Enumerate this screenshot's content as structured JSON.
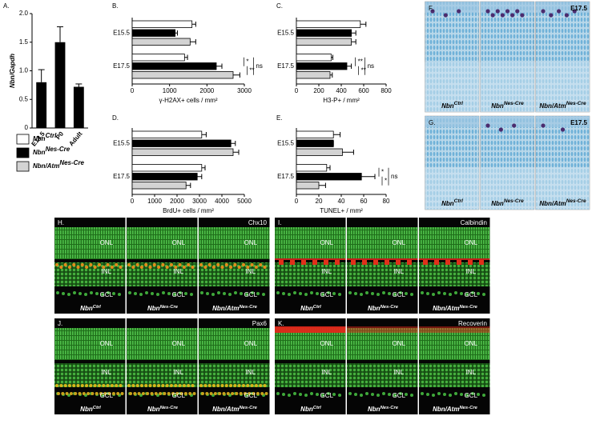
{
  "chart_data": [
    {
      "type": "bar",
      "label": "A.",
      "ylabel": "Nbn/Gapdh",
      "categories": [
        "E14.5",
        "P0",
        "Adult"
      ],
      "values": [
        0.8,
        1.5,
        0.72
      ],
      "errors": [
        0.22,
        0.27,
        0.05
      ],
      "color": "#000000",
      "ylim": [
        0,
        2
      ],
      "yticks": [
        0,
        0.5,
        {
          "value": 1,
          "label": "1.0"
        },
        1.5,
        {
          "value": 2,
          "label": "2.0"
        }
      ]
    },
    {
      "type": "hbar",
      "label": "B.",
      "xlabel": "γ-H2AX+ cells / mm²",
      "categories": [
        "E15.5",
        "E17.5"
      ],
      "series": [
        {
          "color": "#ffffff",
          "values": [
            1600,
            1400
          ],
          "errors": [
            100,
            80
          ]
        },
        {
          "color": "#000000",
          "values": [
            1150,
            2250
          ],
          "errors": [
            60,
            150
          ]
        },
        {
          "color": "#d3d3d3",
          "values": [
            1550,
            2700
          ],
          "errors": [
            150,
            180
          ]
        }
      ],
      "xlim": [
        0,
        3000
      ],
      "xticks": [
        0,
        1000,
        2000,
        3000
      ],
      "annotations": [
        "*",
        "**",
        "ns"
      ]
    },
    {
      "type": "hbar",
      "label": "C.",
      "xlabel": "H3-P+ / mm²",
      "categories": [
        "E15.5",
        "E17.5"
      ],
      "series": [
        {
          "color": "#ffffff",
          "values": [
            570,
            310
          ],
          "errors": [
            50,
            15
          ]
        },
        {
          "color": "#000000",
          "values": [
            490,
            450
          ],
          "errors": [
            40,
            40
          ]
        },
        {
          "color": "#d3d3d3",
          "values": [
            490,
            300
          ],
          "errors": [
            40,
            20
          ]
        }
      ],
      "xlim": [
        0,
        800
      ],
      "xticks": [
        0,
        200,
        400,
        600,
        800
      ],
      "annotations": [
        "**",
        "**",
        "ns"
      ]
    },
    {
      "type": "hbar",
      "label": "D.",
      "xlabel": "BrdU+ cells / mm²",
      "categories": [
        "E15.5",
        "E17.5"
      ],
      "series": [
        {
          "color": "#ffffff",
          "values": [
            3100,
            3100
          ],
          "errors": [
            200,
            150
          ]
        },
        {
          "color": "#000000",
          "values": [
            4400,
            2900
          ],
          "errors": [
            200,
            200
          ]
        },
        {
          "color": "#d3d3d3",
          "values": [
            4500,
            2400
          ],
          "errors": [
            250,
            200
          ]
        }
      ],
      "xlim": [
        0,
        5000
      ],
      "xticks": [
        0,
        1000,
        2000,
        3000,
        4000,
        5000
      ]
    },
    {
      "type": "hbar",
      "label": "E.",
      "xlabel": "TUNEL+ / mm²",
      "categories": [
        "E15.5",
        "E17.5"
      ],
      "series": [
        {
          "color": "#ffffff",
          "values": [
            33,
            27
          ],
          "errors": [
            6,
            3
          ]
        },
        {
          "color": "#000000",
          "values": [
            33,
            58
          ],
          "errors": [
            0,
            12
          ]
        },
        {
          "color": "#d3d3d3",
          "values": [
            41,
            20
          ],
          "errors": [
            10,
            6
          ]
        }
      ],
      "xlim": [
        0,
        80
      ],
      "xticks": [
        0,
        20,
        40,
        60,
        80
      ],
      "annotations": [
        "*",
        "*",
        "ns"
      ]
    }
  ],
  "legend": [
    {
      "name": "Nbn",
      "sup": "Ctrl",
      "color": "#ffffff"
    },
    {
      "name": "Nbn",
      "sup": "Nes-Cre",
      "color": "#000000"
    },
    {
      "name": "Nbn/Atm",
      "sup": "Nes-Cre",
      "color": "#d3d3d3"
    }
  ],
  "micrographs": [
    {
      "label": "F.",
      "stage": "E17.5"
    },
    {
      "label": "G.",
      "stage": "E17.5"
    }
  ],
  "retina_panels": [
    {
      "label": "H.",
      "marker": "Chx10"
    },
    {
      "label": "I.",
      "marker": "Calbindin"
    },
    {
      "label": "J.",
      "marker": "Pax6"
    },
    {
      "label": "K.",
      "marker": "Recoverin"
    }
  ],
  "layers": [
    "ONL",
    "INL",
    "GCL"
  ]
}
